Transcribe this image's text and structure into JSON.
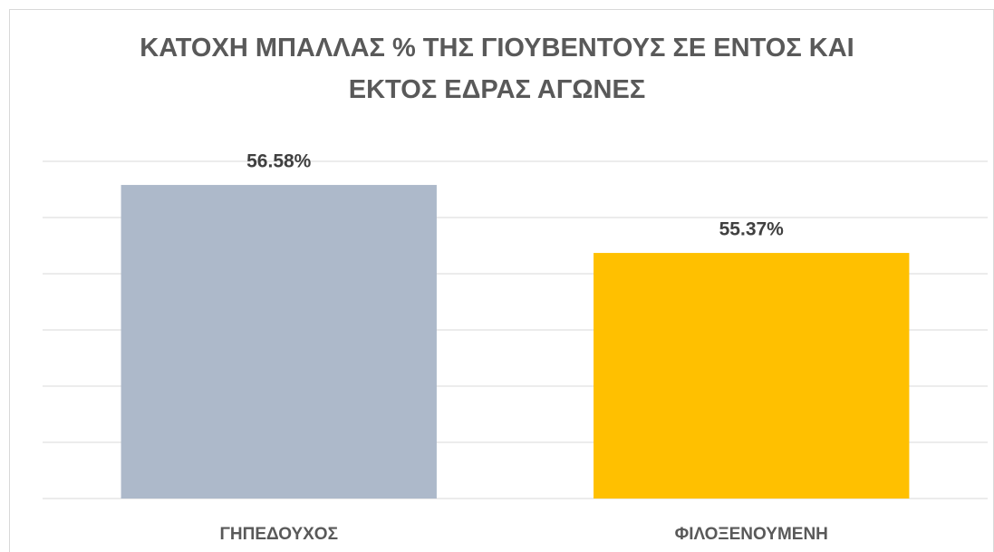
{
  "chart_data": {
    "type": "bar",
    "title": "ΚΑΤΟΧΗ ΜΠΑΛΛΑΣ % ΤΗΣ ΓΙΟΥΒΕΝΤΟΥΣ ΣΕ ΕΝΤΟΣ ΚΑΙ\nΕΚΤΟΣ ΕΔΡΑΣ ΑΓΩΝΕΣ",
    "categories": [
      "ΓΗΠΕΔΟΥΧΟΣ",
      "ΦΙΛΟΞΕΝΟΥΜΕΝΗ"
    ],
    "values": [
      56.58,
      55.37
    ],
    "value_labels": [
      "56.58%",
      "55.37%"
    ],
    "colors": [
      "#adb9ca",
      "#ffc000"
    ],
    "ylim": [
      51,
      57
    ],
    "yticks": [
      51,
      52,
      53,
      54,
      55,
      56,
      57
    ],
    "grid": true
  }
}
